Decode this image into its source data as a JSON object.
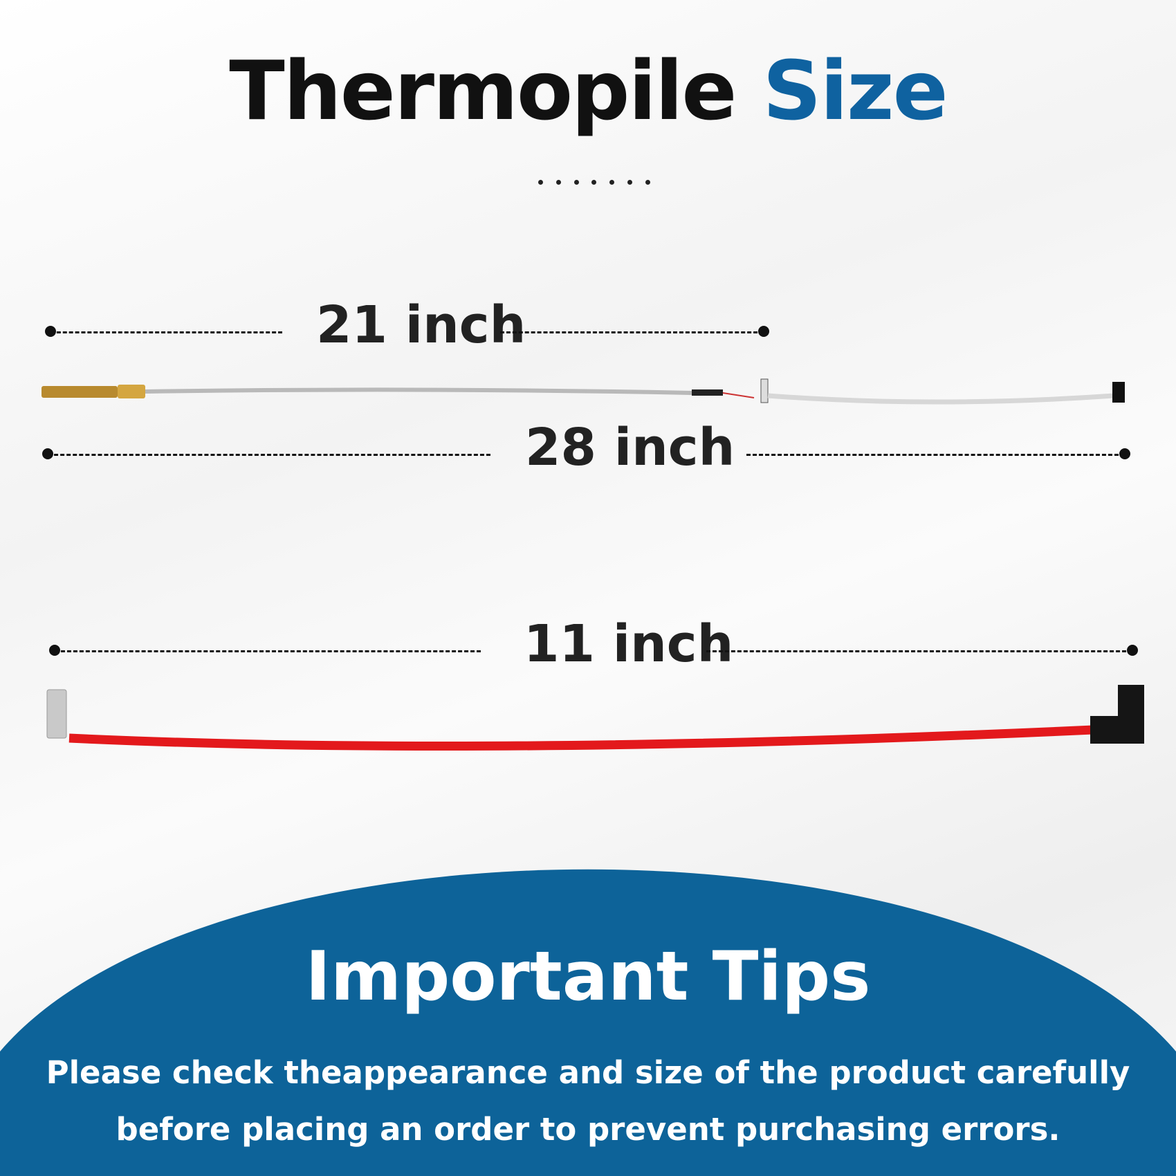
{
  "header": {
    "title_main": "Thermopile",
    "title_accent": "Size",
    "accent_color": "#0f62a0"
  },
  "dimensions": [
    {
      "label": "21 inch"
    },
    {
      "label": "28 inch"
    },
    {
      "label": "11 inch"
    }
  ],
  "tips": {
    "title": "Important Tips",
    "line1": "Please check theappearance and size of the product carefully",
    "line2": "before placing an order to prevent purchasing errors.",
    "background_color": "#0d6399"
  }
}
